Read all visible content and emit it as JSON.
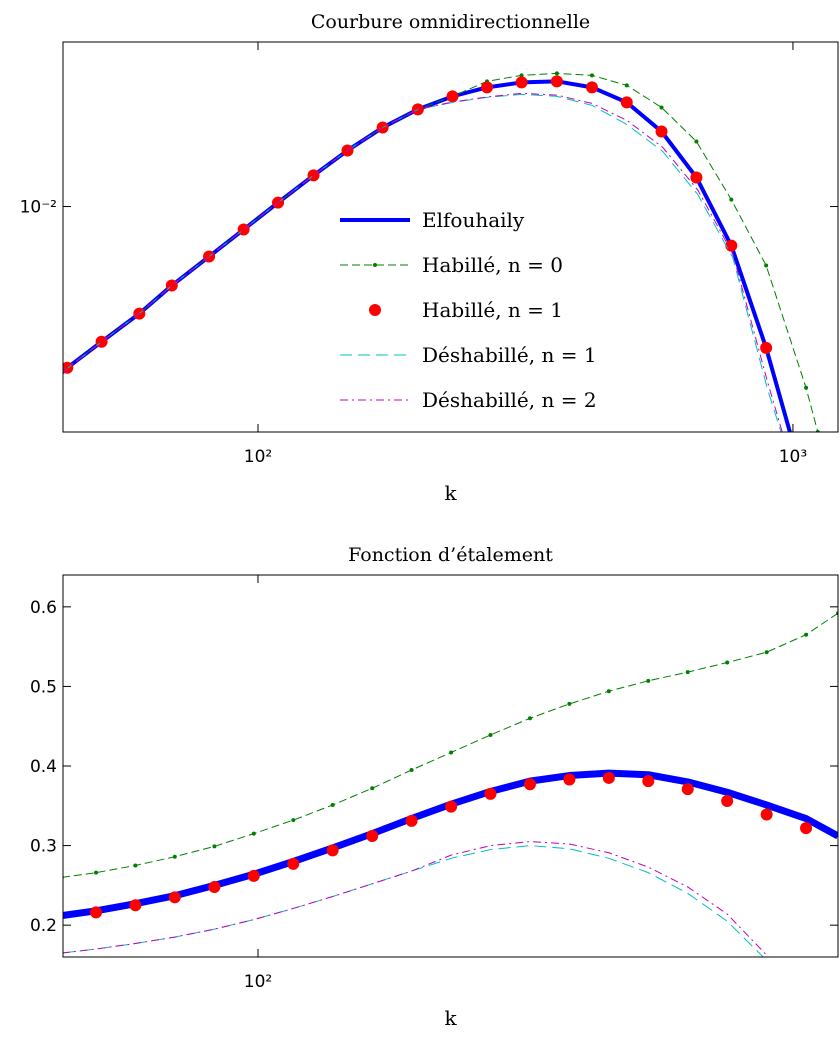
{
  "chart_data": [
    {
      "type": "line",
      "title": "Courbure omnidirectionnelle",
      "xlabel": "k",
      "xscale": "log",
      "yscale": "log",
      "xlim": [
        43.2,
        1214
      ],
      "ylim": [
        0.0027,
        0.026
      ],
      "xticks": [
        {
          "value": 100,
          "label": "10²"
        },
        {
          "value": 1000,
          "label": "10³"
        }
      ],
      "yticks": [
        {
          "value": 0.01,
          "label": "10⁻²"
        }
      ],
      "legend": "center",
      "series": [
        {
          "name": "Elfouhaily",
          "color": "#0000ff",
          "dash": "solid",
          "marker": "none",
          "linewidth": 4,
          "x": [
            43,
            44,
            51,
            60,
            69,
            81,
            94,
            109,
            127,
            147,
            171,
            199,
            231,
            268,
            311,
            362,
            421,
            489,
            568,
            660,
            767,
            891,
            987
          ],
          "values": [
            0.00381,
            0.00392,
            0.00456,
            0.00537,
            0.00632,
            0.00748,
            0.00875,
            0.01023,
            0.01198,
            0.01385,
            0.01582,
            0.01758,
            0.01896,
            0.01998,
            0.02056,
            0.02069,
            0.01998,
            0.01831,
            0.01546,
            0.01184,
            0.00797,
            0.0044,
            0.0027
          ]
        },
        {
          "name": "Habillé, n = 0",
          "color": "#007f00",
          "dash": "dashed",
          "marker": "dot",
          "linewidth": 1,
          "x": [
            44,
            51,
            60,
            69,
            81,
            94,
            109,
            127,
            147,
            171,
            199,
            231,
            268,
            311,
            362,
            421,
            489,
            568,
            660,
            767,
            891,
            1058,
            1113
          ],
          "values": [
            0.00392,
            0.00456,
            0.00537,
            0.00632,
            0.00748,
            0.00875,
            0.01023,
            0.01198,
            0.01385,
            0.01582,
            0.01758,
            0.01896,
            0.02069,
            0.02142,
            0.02167,
            0.02142,
            0.02021,
            0.01778,
            0.01459,
            0.01041,
            0.0071,
            0.00349,
            0.0027
          ]
        },
        {
          "name": "Habillé, n = 1",
          "color": "#ff0000",
          "dash": "none",
          "marker": "circle",
          "linewidth": 0,
          "x": [
            44,
            51,
            60,
            69,
            81,
            94,
            109,
            127,
            147,
            171,
            199,
            231,
            268,
            311,
            362,
            421,
            489,
            568,
            660,
            767,
            891
          ],
          "values": [
            0.00392,
            0.00456,
            0.00537,
            0.00632,
            0.00748,
            0.00875,
            0.01023,
            0.01198,
            0.01385,
            0.01582,
            0.01758,
            0.01896,
            0.01998,
            0.02056,
            0.02069,
            0.01998,
            0.01831,
            0.01546,
            0.01184,
            0.00797,
            0.0044
          ]
        },
        {
          "name": "Déshabillé, n = 1",
          "color": "#00bfbf",
          "dash": "dashed-long",
          "marker": "none",
          "linewidth": 1,
          "x": [
            43,
            51,
            60,
            69,
            81,
            94,
            109,
            127,
            147,
            171,
            199,
            231,
            268,
            311,
            362,
            421,
            489,
            571,
            664,
            772,
            897,
            950
          ],
          "values": [
            0.00381,
            0.00456,
            0.00537,
            0.00632,
            0.00748,
            0.00875,
            0.01023,
            0.01198,
            0.01385,
            0.01582,
            0.01758,
            0.0183,
            0.01885,
            0.01918,
            0.01896,
            0.018,
            0.01611,
            0.01377,
            0.01072,
            0.00743,
            0.00345,
            0.0027
          ]
        },
        {
          "name": "Déshabillé, n = 2",
          "color": "#bf00bf",
          "dash": "dashdot",
          "marker": "none",
          "linewidth": 1,
          "x": [
            43,
            51,
            60,
            69,
            81,
            94,
            109,
            127,
            147,
            171,
            199,
            231,
            268,
            311,
            362,
            421,
            489,
            571,
            664,
            772,
            897,
            955
          ],
          "values": [
            0.00381,
            0.00456,
            0.00537,
            0.00632,
            0.00748,
            0.00875,
            0.01023,
            0.01198,
            0.01385,
            0.01582,
            0.01758,
            0.01835,
            0.0189,
            0.0193,
            0.0191,
            0.0182,
            0.0165,
            0.0141,
            0.011,
            0.0076,
            0.0036,
            0.0027
          ]
        }
      ]
    },
    {
      "type": "line",
      "title": "Fonction d’étalement",
      "xlabel": "k",
      "xscale": "log",
      "yscale": "linear",
      "xlim": [
        43.2,
        1214
      ],
      "ylim": [
        0.16,
        0.64
      ],
      "xticks": [
        {
          "value": 100,
          "label": "10²"
        }
      ],
      "yticks": [
        0.2,
        0.3,
        0.4,
        0.5,
        0.6
      ],
      "series": [
        {
          "color": "#0000ff",
          "dash": "solid",
          "marker": "none",
          "linewidth": 7,
          "x": [
            43,
            49.8,
            59,
            69.9,
            82.9,
            98.2,
            116.4,
            137.9,
            163.5,
            193.7,
            229.6,
            272,
            322.4,
            382,
            452.7,
            536.5,
            635.8,
            753.4,
            892.9,
            1058,
            1214
          ],
          "values": [
            0.212,
            0.218,
            0.227,
            0.237,
            0.25,
            0.264,
            0.28,
            0.297,
            0.315,
            0.334,
            0.352,
            0.368,
            0.381,
            0.388,
            0.391,
            0.389,
            0.38,
            0.367,
            0.351,
            0.334,
            0.312
          ]
        },
        {
          "color": "#007f00",
          "dash": "dashed",
          "marker": "dot",
          "linewidth": 1,
          "x": [
            43,
            49.8,
            59,
            69.9,
            82.9,
            98.2,
            116.4,
            137.9,
            163.5,
            193.7,
            229.6,
            272,
            322.4,
            382,
            452.7,
            536.5,
            635.8,
            753.4,
            892.9,
            1058,
            1214
          ],
          "values": [
            0.26,
            0.266,
            0.275,
            0.286,
            0.299,
            0.315,
            0.332,
            0.351,
            0.372,
            0.395,
            0.417,
            0.439,
            0.46,
            0.478,
            0.494,
            0.507,
            0.518,
            0.53,
            0.543,
            0.565,
            0.592
          ]
        },
        {
          "color": "#ff0000",
          "dash": "none",
          "marker": "circle",
          "linewidth": 0,
          "x": [
            49.8,
            59,
            69.9,
            82.9,
            98.2,
            116.4,
            137.9,
            163.5,
            193.7,
            229.6,
            272,
            322.4,
            382,
            452.7,
            536.5,
            635.8,
            753.4,
            892.9,
            1058
          ],
          "values": [
            0.216,
            0.225,
            0.235,
            0.248,
            0.262,
            0.277,
            0.294,
            0.312,
            0.331,
            0.349,
            0.365,
            0.377,
            0.383,
            0.385,
            0.381,
            0.371,
            0.356,
            0.339,
            0.322
          ]
        },
        {
          "color": "#00bfbf",
          "dash": "dashed-long",
          "marker": "none",
          "linewidth": 1,
          "x": [
            43,
            49.8,
            59,
            69.9,
            82.9,
            98.2,
            116.4,
            137.9,
            163.5,
            193.7,
            229.6,
            272,
            322.4,
            382,
            452.7,
            536.5,
            635.8,
            753.4,
            880
          ],
          "values": [
            0.165,
            0.17,
            0.177,
            0.185,
            0.195,
            0.207,
            0.221,
            0.236,
            0.252,
            0.268,
            0.284,
            0.295,
            0.3,
            0.296,
            0.284,
            0.266,
            0.24,
            0.205,
            0.16
          ]
        },
        {
          "color": "#bf00bf",
          "dash": "dashdot",
          "marker": "none",
          "linewidth": 1,
          "x": [
            43,
            49.8,
            59,
            69.9,
            82.9,
            98.2,
            116.4,
            137.9,
            163.5,
            193.7,
            229.6,
            272,
            322.4,
            382,
            452.7,
            536.5,
            635.8,
            753.4,
            900
          ],
          "values": [
            0.165,
            0.17,
            0.177,
            0.185,
            0.195,
            0.207,
            0.221,
            0.236,
            0.252,
            0.268,
            0.288,
            0.3,
            0.305,
            0.302,
            0.291,
            0.273,
            0.248,
            0.214,
            0.16
          ]
        }
      ]
    }
  ]
}
